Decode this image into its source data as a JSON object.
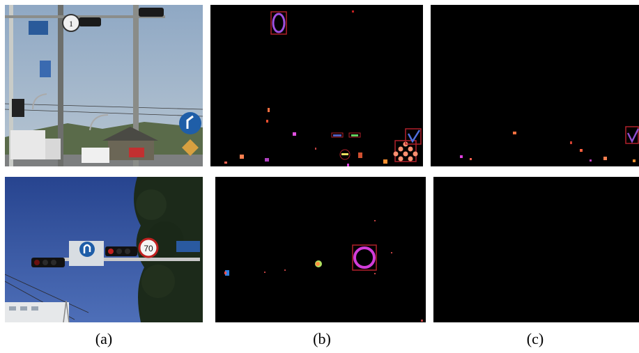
{
  "figure": {
    "captions": [
      "(a)",
      "(b)",
      "(c)"
    ],
    "panels": [
      {
        "name": "street-scene-top-photo",
        "content": "traffic lights and road signs on poles, trucks on road"
      },
      {
        "name": "detection-map-top-b",
        "content": "color detection map with highlighted candidate regions"
      },
      {
        "name": "detection-map-top-c",
        "content": "filtered detection map"
      },
      {
        "name": "street-scene-bottom-photo",
        "content": "traffic lights, U-turn sign, speed limit 70 sign"
      },
      {
        "name": "detection-map-bottom-b",
        "content": "color detection map with circle sign candidate"
      },
      {
        "name": "detection-map-bottom-c",
        "content": "filtered detection map, empty"
      }
    ],
    "colors": {
      "sky_top": "#9fb7cf",
      "sky_bottom": "#2f4fa0",
      "magenta_detection": "#d23cd8",
      "red_box": "#b0202a",
      "orange_detection": "#ff9060"
    }
  }
}
